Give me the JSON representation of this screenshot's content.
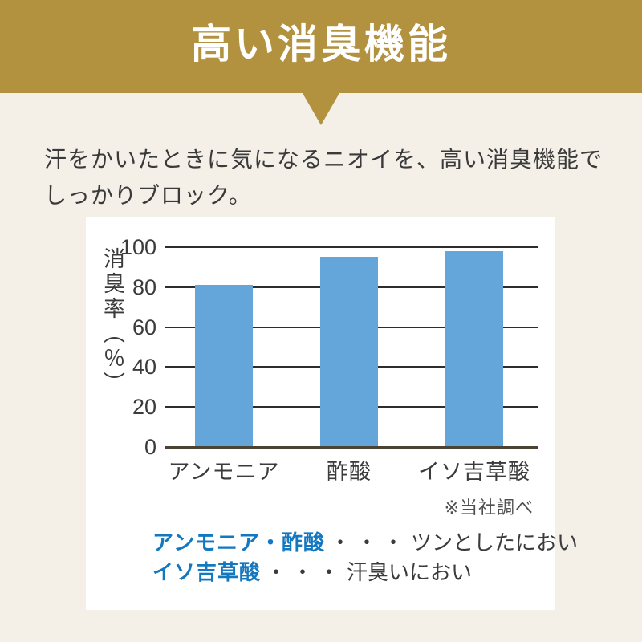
{
  "colors": {
    "banner_gold": "#b2923f",
    "page_background": "#f4f0e8",
    "card_background": "#ffffff",
    "bar_blue": "#64a6d9",
    "legend_term_blue": "#1478c0",
    "text_dark": "#3a3a3a"
  },
  "header": {
    "title": "高い消臭機能"
  },
  "intro": {
    "line1": "汗をかいたときに気になるニオイを、高い消臭機能で",
    "line2": "しっかりブロック。"
  },
  "chart_data": {
    "type": "bar",
    "categories": [
      "アンモニア",
      "酢酸",
      "イソ吉草酸"
    ],
    "values": [
      81,
      95,
      98
    ],
    "ylabel": "消臭率（％）",
    "yticks": [
      0,
      20,
      40,
      60,
      80,
      100
    ],
    "ylim": [
      0,
      100
    ],
    "grid": true,
    "bar_color": "#64a6d9",
    "note": "※当社調べ"
  },
  "legend": {
    "items": [
      {
        "term": "アンモニア・酢酸",
        "dots": "・・・",
        "description": "ツンとしたにおい"
      },
      {
        "term": "イソ吉草酸",
        "dots": "・・・",
        "description": "汗臭いにおい"
      }
    ]
  }
}
